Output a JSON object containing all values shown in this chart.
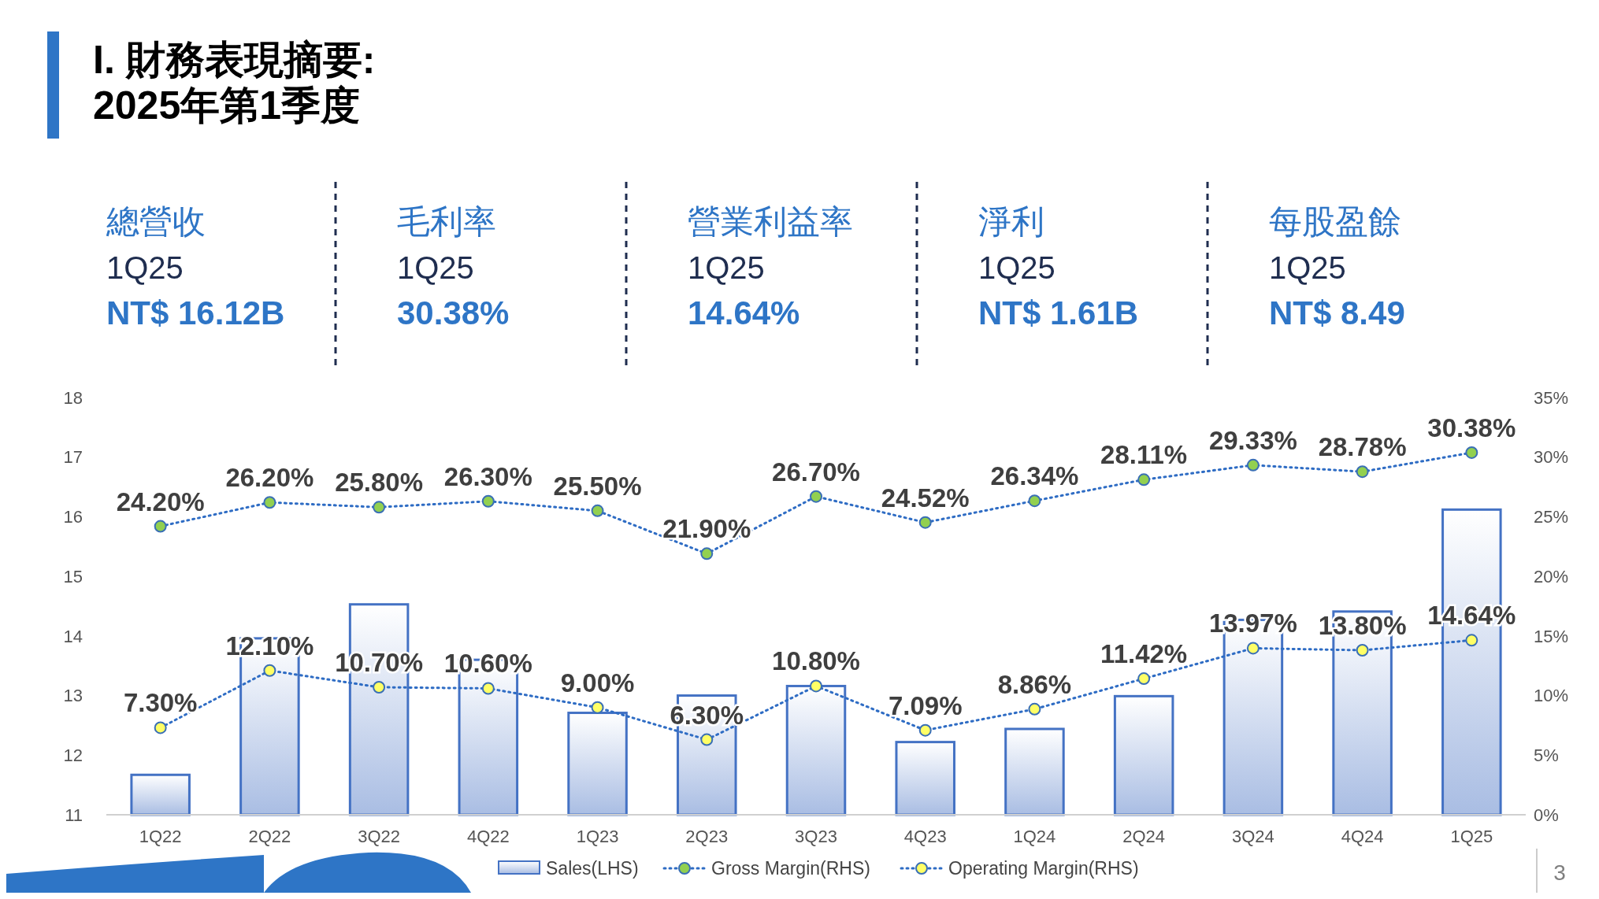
{
  "chart_data": [
    {
      "type": "other",
      "title": "I. 財務表現摘要:\n2025年第1季度",
      "annotations": [
        "總營收",
        "1Q25",
        "NT$ 16.12B",
        "毛利率",
        "1Q25",
        "30.38%",
        "營業利益率",
        "1Q25",
        "14.64%",
        "淨利",
        "1Q25",
        "NT$ 1.61B",
        "每股盈餘",
        "1Q25",
        "NT$ 8.49"
      ]
    },
    {
      "type": "bar",
      "categories": [
        "1Q22",
        "2Q22",
        "3Q22",
        "4Q22",
        "1Q23",
        "2Q23",
        "3Q23",
        "4Q23",
        "1Q24",
        "2Q24",
        "3Q24",
        "4Q24",
        "1Q25"
      ],
      "series": [
        {
          "name": "Sales(LHS)",
          "type": "bar",
          "color": "#4472c4",
          "values": [
            11.67,
            13.96,
            14.53,
            13.6,
            12.71,
            13.0,
            13.16,
            12.22,
            12.44,
            12.99,
            14.27,
            14.41,
            16.12
          ]
        },
        {
          "name": "Gross Margin(RHS)",
          "type": "line",
          "axis": "y2",
          "color": "#92d050",
          "marker": "circle",
          "line_style": "dotted",
          "values": [
            24.2,
            26.2,
            25.8,
            26.3,
            25.5,
            21.9,
            26.7,
            24.52,
            26.34,
            28.11,
            29.33,
            28.78,
            30.38
          ],
          "value_labels": [
            "24.20%",
            "26.20%",
            "25.80%",
            "26.30%",
            "25.50%",
            "21.90%",
            "26.70%",
            "24.52%",
            "26.34%",
            "28.11%",
            "29.33%",
            "28.78%",
            "30.38%"
          ]
        },
        {
          "name": "Operating Margin(RHS)",
          "type": "line",
          "axis": "y2",
          "color": "#ffff66",
          "marker": "circle",
          "line_style": "dotted",
          "values": [
            7.3,
            12.1,
            10.7,
            10.6,
            9.0,
            6.3,
            10.8,
            7.09,
            8.86,
            11.42,
            13.97,
            13.8,
            14.64
          ],
          "value_labels": [
            "7.30%",
            "12.10%",
            "10.70%",
            "10.60%",
            "9.00%",
            "6.30%",
            "10.80%",
            "7.09%",
            "8.86%",
            "11.42%",
            "13.97%",
            "13.80%",
            "14.64%"
          ]
        }
      ],
      "ylim": [
        11,
        18
      ],
      "yticks": [
        11,
        12,
        13,
        14,
        15,
        16,
        17,
        18
      ],
      "y2lim": [
        0,
        35
      ],
      "y2ticks": [
        {
          "value": 0,
          "label": "0%"
        },
        {
          "value": 5,
          "label": "5%"
        },
        {
          "value": 10,
          "label": "10%"
        },
        {
          "value": 15,
          "label": "15%"
        },
        {
          "value": 20,
          "label": "20%"
        },
        {
          "value": 25,
          "label": "25%"
        },
        {
          "value": 30,
          "label": "30%"
        },
        {
          "value": 35,
          "label": "35%"
        }
      ],
      "grid": false,
      "legend": "bottom",
      "annotations": [
        "3"
      ]
    }
  ]
}
